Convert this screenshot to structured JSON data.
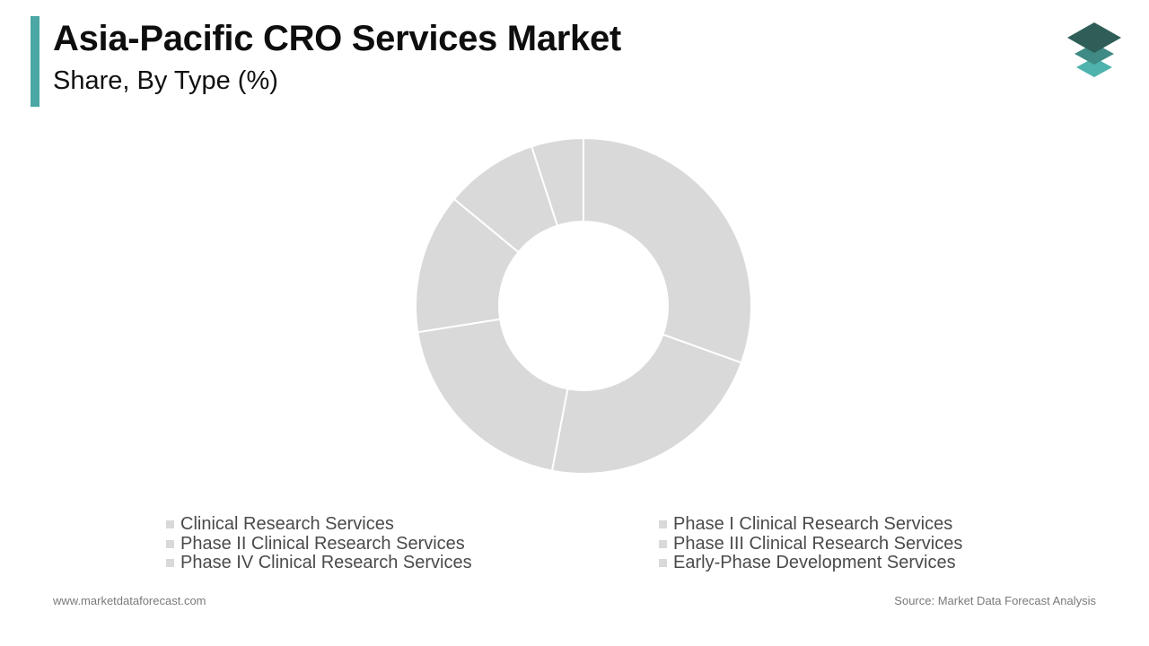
{
  "header": {
    "title": "Asia-Pacific CRO Services Market",
    "subtitle": "Share, By Type (%)"
  },
  "logo": {
    "icon": "stacked-layers-logo-icon",
    "colors": [
      "#2f5d57",
      "#3f8a84",
      "#4fb3ad"
    ]
  },
  "colors": {
    "accent": "#4aa7a3",
    "slice_fill": "#d9d9d9",
    "slice_stroke": "#ffffff",
    "legend_text": "#4a4a4a",
    "footer_text": "#7a7a7a"
  },
  "chart_data": {
    "type": "pie",
    "variant": "donut",
    "categories": [
      "Clinical Research Services",
      "Phase I Clinical Research Services",
      "Phase II Clinical Research Services",
      "Phase III Clinical Research Services",
      "Phase IV Clinical Research Services",
      "Early-Phase Development Services"
    ],
    "values": [
      30.5,
      22.5,
      19.5,
      13.5,
      9.0,
      5.0
    ],
    "unit": "%",
    "legend_position": "bottom",
    "start_angle_deg": 0,
    "direction": "clockwise"
  },
  "footer": {
    "website": "www.marketdataforecast.com",
    "source": "Source: Market Data Forecast Analysis"
  }
}
